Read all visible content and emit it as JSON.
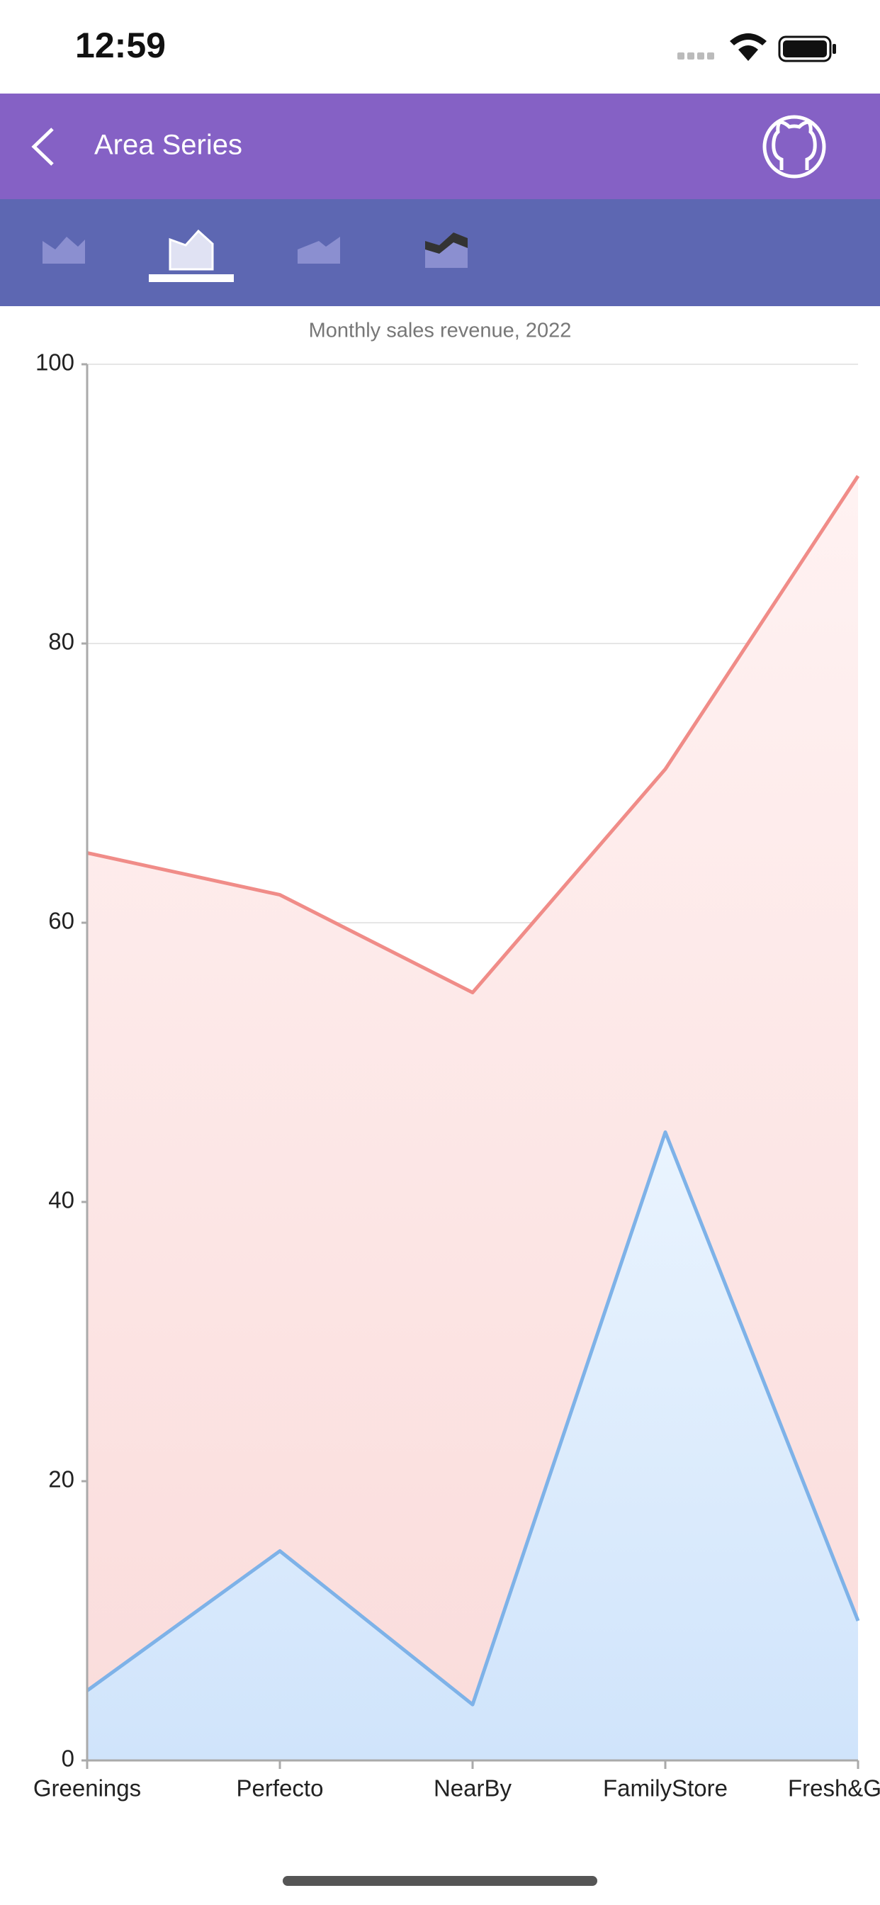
{
  "status": {
    "time": "12:59"
  },
  "header": {
    "title": "Area Series"
  },
  "chart_data": {
    "type": "area",
    "title": "Monthly sales revenue, 2022",
    "categories": [
      "Greenings",
      "Perfecto",
      "NearBy",
      "FamilyStore",
      "Fresh&Green"
    ],
    "series": [
      {
        "color": "#f08c88",
        "values": [
          65,
          62,
          55,
          71,
          92
        ]
      },
      {
        "color": "#7eb2e8",
        "values": [
          5,
          15,
          4,
          45,
          10
        ]
      }
    ],
    "ylim": [
      0,
      100
    ],
    "yticks": [
      0,
      20,
      40,
      60,
      80,
      100
    ],
    "grid": true
  }
}
